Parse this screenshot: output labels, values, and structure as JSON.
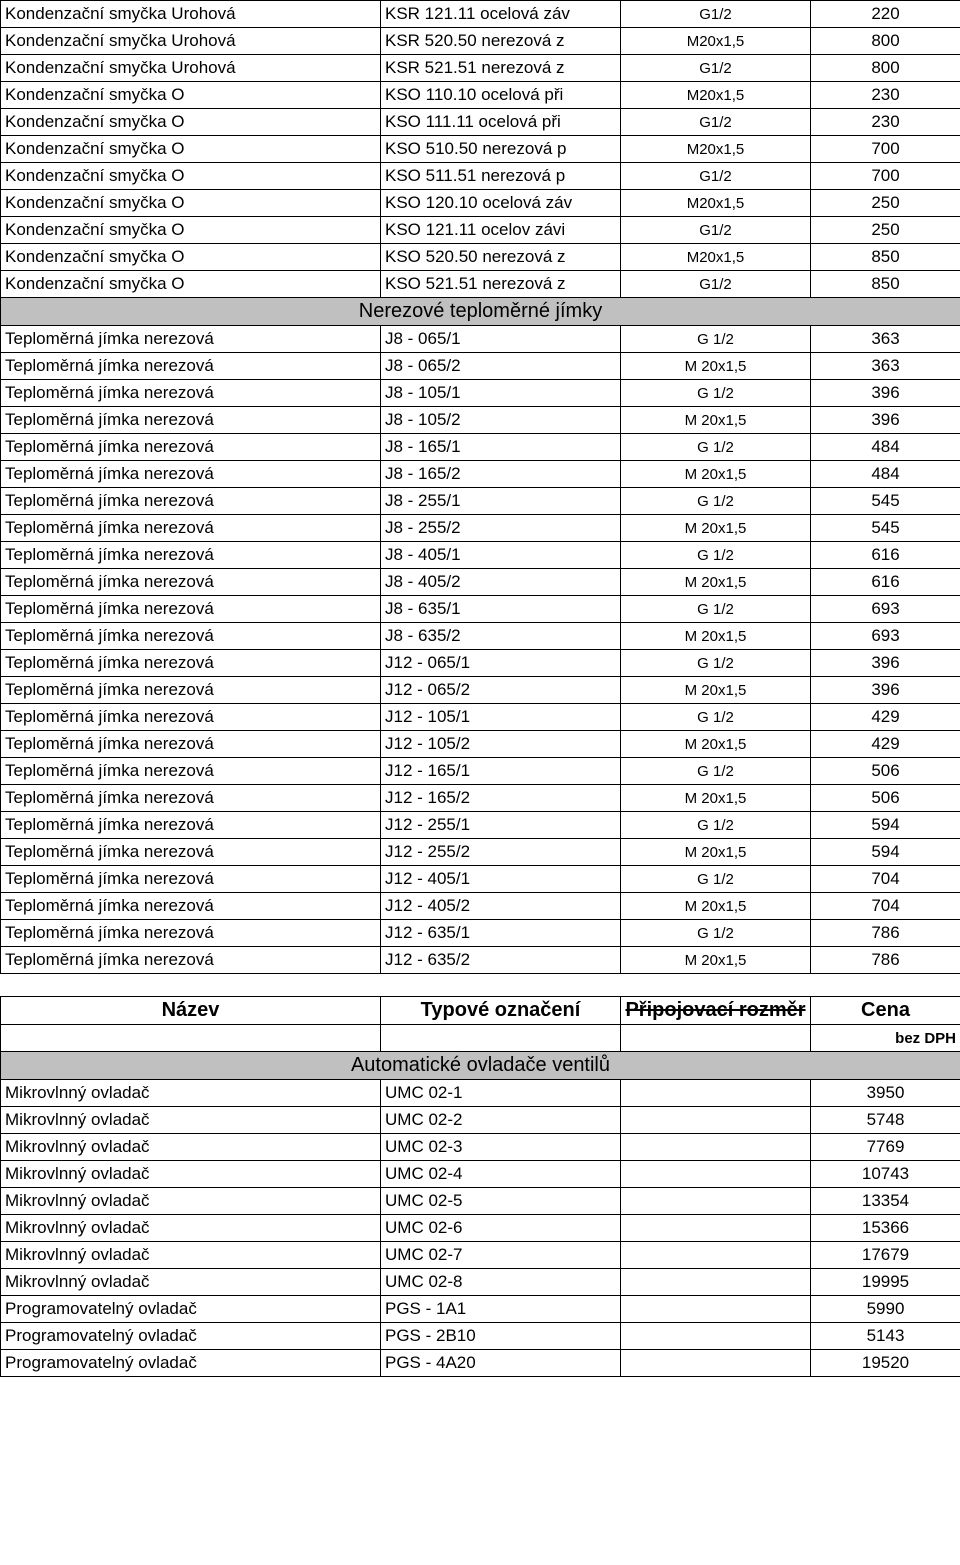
{
  "table1": {
    "rows": [
      {
        "c1": "Kondenzační smyčka Urohová",
        "c2": "KSR 121.11 ocelová záv",
        "c3": "G1/2",
        "c4": "220"
      },
      {
        "c1": "Kondenzační smyčka Urohová",
        "c2": "KSR 520.50 nerezová z",
        "c3": "M20x1,5",
        "c4": "800"
      },
      {
        "c1": "Kondenzační smyčka Urohová",
        "c2": "KSR 521.51 nerezová z",
        "c3": "G1/2",
        "c4": "800"
      },
      {
        "c1": "Kondenzační smyčka O",
        "c2": "KSO 110.10 ocelová při",
        "c3": "M20x1,5",
        "c4": "230"
      },
      {
        "c1": "Kondenzační smyčka O",
        "c2": "KSO 111.11 ocelová při",
        "c3": "G1/2",
        "c4": "230"
      },
      {
        "c1": "Kondenzační smyčka O",
        "c2": "KSO 510.50 nerezová p",
        "c3": "M20x1,5",
        "c4": "700"
      },
      {
        "c1": "Kondenzační smyčka O",
        "c2": "KSO 511.51 nerezová p",
        "c3": "G1/2",
        "c4": "700"
      },
      {
        "c1": "Kondenzační smyčka O",
        "c2": "KSO 120.10 ocelová záv",
        "c3": "M20x1,5",
        "c4": "250"
      },
      {
        "c1": "Kondenzační smyčka O",
        "c2": "KSO 121.11 ocelov závi",
        "c3": "G1/2",
        "c4": "250"
      },
      {
        "c1": "Kondenzační smyčka O",
        "c2": "KSO 520.50 nerezová z",
        "c3": "M20x1,5",
        "c4": "850"
      },
      {
        "c1": "Kondenzační smyčka O",
        "c2": "KSO 521.51 nerezová z",
        "c3": "G1/2",
        "c4": "850"
      }
    ],
    "section1": "Nerezové teploměrné jímky",
    "rows2": [
      {
        "c1": "Teploměrná jímka nerezová",
        "c2": "J8 - 065/1",
        "c3": "G 1/2",
        "c4": "363"
      },
      {
        "c1": "Teploměrná jímka nerezová",
        "c2": "J8 - 065/2",
        "c3": "M 20x1,5",
        "c4": "363"
      },
      {
        "c1": "Teploměrná jímka nerezová",
        "c2": "J8 - 105/1",
        "c3": "G 1/2",
        "c4": "396"
      },
      {
        "c1": "Teploměrná jímka nerezová",
        "c2": "J8 - 105/2",
        "c3": "M 20x1,5",
        "c4": "396"
      },
      {
        "c1": "Teploměrná jímka nerezová",
        "c2": "J8 - 165/1",
        "c3": "G 1/2",
        "c4": "484"
      },
      {
        "c1": "Teploměrná jímka nerezová",
        "c2": "J8 - 165/2",
        "c3": "M 20x1,5",
        "c4": "484"
      },
      {
        "c1": "Teploměrná jímka nerezová",
        "c2": "J8 - 255/1",
        "c3": "G 1/2",
        "c4": "545"
      },
      {
        "c1": "Teploměrná jímka nerezová",
        "c2": "J8 - 255/2",
        "c3": "M 20x1,5",
        "c4": "545"
      },
      {
        "c1": "Teploměrná jímka nerezová",
        "c2": "J8 - 405/1",
        "c3": "G 1/2",
        "c4": "616"
      },
      {
        "c1": "Teploměrná jímka nerezová",
        "c2": "J8 - 405/2",
        "c3": "M 20x1,5",
        "c4": "616"
      },
      {
        "c1": "Teploměrná jímka nerezová",
        "c2": "J8 - 635/1",
        "c3": "G 1/2",
        "c4": "693"
      },
      {
        "c1": "Teploměrná jímka nerezová",
        "c2": "J8 - 635/2",
        "c3": "M 20x1,5",
        "c4": "693"
      },
      {
        "c1": "Teploměrná jímka nerezová",
        "c2": "J12 - 065/1",
        "c3": "G 1/2",
        "c4": "396"
      },
      {
        "c1": "Teploměrná jímka nerezová",
        "c2": "J12 - 065/2",
        "c3": "M 20x1,5",
        "c4": "396"
      },
      {
        "c1": "Teploměrná jímka nerezová",
        "c2": "J12 - 105/1",
        "c3": "G 1/2",
        "c4": "429"
      },
      {
        "c1": "Teploměrná jímka nerezová",
        "c2": "J12 - 105/2",
        "c3": "M 20x1,5",
        "c4": "429"
      },
      {
        "c1": "Teploměrná jímka nerezová",
        "c2": "J12 - 165/1",
        "c3": "G 1/2",
        "c4": "506"
      },
      {
        "c1": "Teploměrná jímka nerezová",
        "c2": "J12 - 165/2",
        "c3": "M 20x1,5",
        "c4": "506"
      },
      {
        "c1": "Teploměrná jímka nerezová",
        "c2": "J12 - 255/1",
        "c3": "G 1/2",
        "c4": "594"
      },
      {
        "c1": "Teploměrná jímka nerezová",
        "c2": "J12 - 255/2",
        "c3": "M 20x1,5",
        "c4": "594"
      },
      {
        "c1": "Teploměrná jímka nerezová",
        "c2": "J12 - 405/1",
        "c3": "G 1/2",
        "c4": "704"
      },
      {
        "c1": "Teploměrná jímka nerezová",
        "c2": "J12 - 405/2",
        "c3": "M 20x1,5",
        "c4": "704"
      },
      {
        "c1": "Teploměrná jímka nerezová",
        "c2": "J12 - 635/1",
        "c3": "G 1/2",
        "c4": "786"
      },
      {
        "c1": "Teploměrná jímka nerezová",
        "c2": "J12 - 635/2",
        "c3": "M 20x1,5",
        "c4": "786"
      }
    ]
  },
  "table2": {
    "headers": {
      "h1": "Název",
      "h2": "Typové označení",
      "h3": "Připojovací rozměr",
      "h4": "Cena"
    },
    "sub": "bez DPH",
    "section": "Automatické ovladače ventilů",
    "rows": [
      {
        "c1": "Mikrovlnný ovladač",
        "c2": "UMC 02-1",
        "c3": "",
        "c4": "3950"
      },
      {
        "c1": "Mikrovlnný ovladač",
        "c2": "UMC 02-2",
        "c3": "",
        "c4": "5748"
      },
      {
        "c1": "Mikrovlnný ovladač",
        "c2": "UMC 02-3",
        "c3": "",
        "c4": "7769"
      },
      {
        "c1": "Mikrovlnný ovladač",
        "c2": "UMC 02-4",
        "c3": "",
        "c4": "10743"
      },
      {
        "c1": "Mikrovlnný ovladač",
        "c2": "UMC 02-5",
        "c3": "",
        "c4": "13354"
      },
      {
        "c1": "Mikrovlnný ovladač",
        "c2": "UMC 02-6",
        "c3": "",
        "c4": "15366"
      },
      {
        "c1": "Mikrovlnný ovladač",
        "c2": "UMC 02-7",
        "c3": "",
        "c4": "17679"
      },
      {
        "c1": "Mikrovlnný ovladač",
        "c2": "UMC 02-8",
        "c3": "",
        "c4": "19995"
      },
      {
        "c1": "Programovatelný ovladač",
        "c2": "PGS - 1A1",
        "c3": "",
        "c4": "5990"
      },
      {
        "c1": "Programovatelný ovladač",
        "c2": "PGS - 2B10",
        "c3": "",
        "c4": "5143"
      },
      {
        "c1": "Programovatelný ovladač",
        "c2": "PGS - 4A20",
        "c3": "",
        "c4": "19520"
      }
    ]
  }
}
